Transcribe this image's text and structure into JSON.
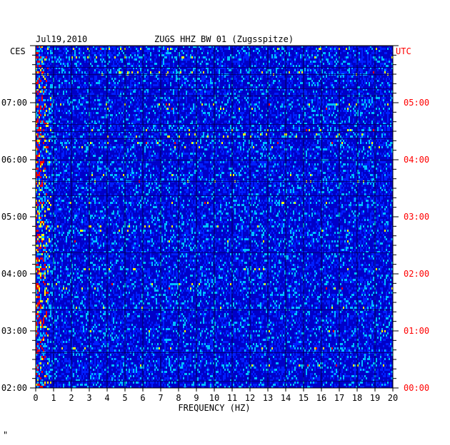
{
  "header": {
    "date": "Jul19,2010",
    "station": "ZUGS HHZ BW 01 (Zugsspitze)",
    "left_tz": "CES",
    "right_tz": "UTC"
  },
  "footer": {
    "mark": "\""
  },
  "chart_data": {
    "type": "heatmap",
    "xlabel": "FREQUENCY (HZ)",
    "xlim": [
      0,
      20
    ],
    "x_ticks": [
      "0",
      "1",
      "2",
      "3",
      "4",
      "5",
      "6",
      "7",
      "8",
      "9",
      "10",
      "11",
      "12",
      "13",
      "14",
      "15",
      "16",
      "17",
      "18",
      "19",
      "20"
    ],
    "left_ticks": [
      "02:00",
      "03:00",
      "04:00",
      "05:00",
      "06:00",
      "07:00"
    ],
    "right_ticks": [
      "00:00",
      "01:00",
      "02:00",
      "03:00",
      "04:00",
      "05:00"
    ],
    "time_range_local_hours": [
      2,
      8
    ],
    "colors": {
      "background": "#0000c8",
      "low": "#0020ff",
      "mid": "#00c0ff",
      "high": "#ffff00",
      "peak": "#ff0000",
      "right_labels": "#ff0000",
      "left_labels": "#000000"
    }
  }
}
